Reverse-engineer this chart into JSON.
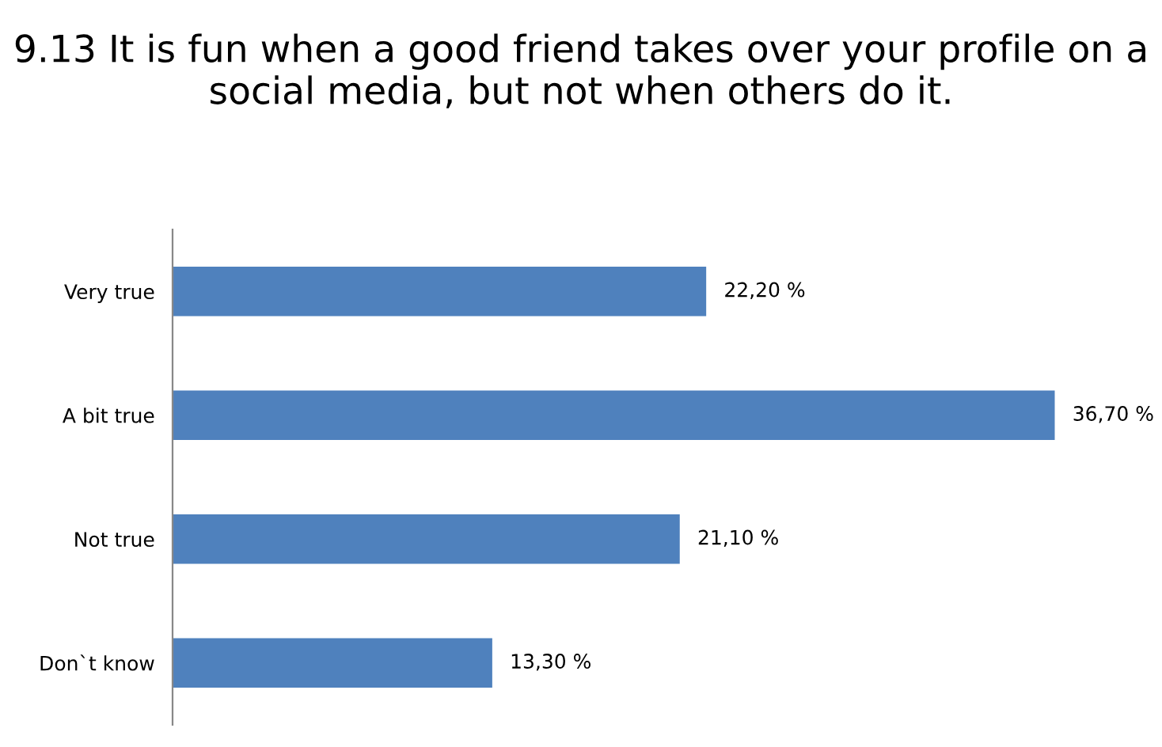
{
  "chart_data": {
    "type": "bar",
    "orientation": "horizontal",
    "title": "9.13 It is fun when a good friend takes over your profile on a social media, but not when others do it.",
    "categories": [
      "Very true",
      "A bit true",
      "Not true",
      "Don`t know"
    ],
    "values": [
      22.2,
      36.7,
      21.1,
      13.3
    ],
    "value_labels": [
      "22,20 %",
      "36,70 %",
      "21,10 %",
      "13,30 %"
    ],
    "color": "#4f81bd",
    "grid": false,
    "legend": false
  }
}
